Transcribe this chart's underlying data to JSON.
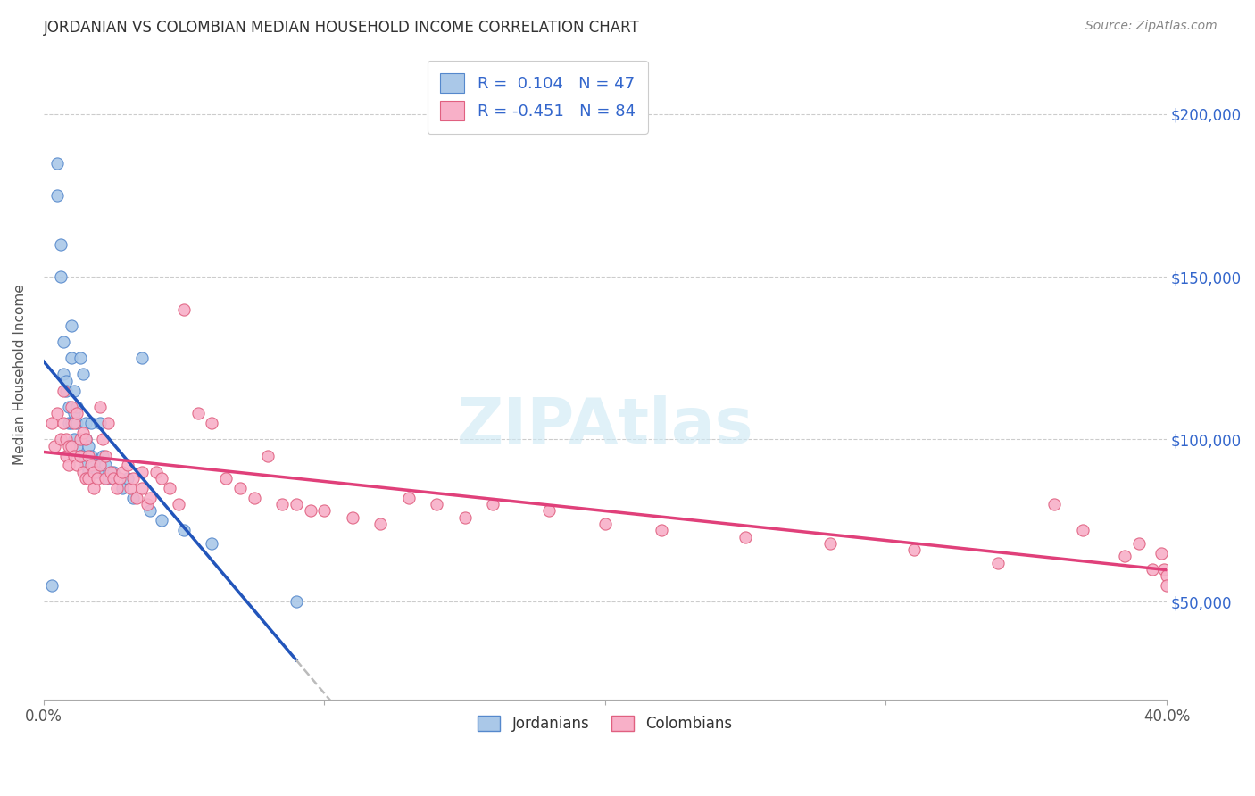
{
  "title": "JORDANIAN VS COLOMBIAN MEDIAN HOUSEHOLD INCOME CORRELATION CHART",
  "source": "Source: ZipAtlas.com",
  "ylabel": "Median Household Income",
  "y_ticks": [
    50000,
    100000,
    150000,
    200000
  ],
  "y_tick_labels": [
    "$50,000",
    "$100,000",
    "$150,000",
    "$200,000"
  ],
  "xlim": [
    0.0,
    0.4
  ],
  "ylim": [
    20000,
    220000
  ],
  "jordan_color": "#aac8e8",
  "jordan_edge": "#5588cc",
  "colombia_color": "#f8b0c8",
  "colombia_edge": "#e06080",
  "jordan_line_color": "#2255bb",
  "colombia_line_color": "#e0407a",
  "trend_dashed_color": "#bbbbbb",
  "jordanians_x": [
    0.003,
    0.005,
    0.005,
    0.006,
    0.006,
    0.007,
    0.007,
    0.008,
    0.008,
    0.009,
    0.009,
    0.01,
    0.01,
    0.01,
    0.011,
    0.011,
    0.011,
    0.012,
    0.012,
    0.012,
    0.013,
    0.013,
    0.014,
    0.014,
    0.015,
    0.015,
    0.015,
    0.016,
    0.016,
    0.017,
    0.017,
    0.018,
    0.019,
    0.02,
    0.021,
    0.022,
    0.023,
    0.025,
    0.028,
    0.03,
    0.032,
    0.035,
    0.038,
    0.042,
    0.05,
    0.06,
    0.09
  ],
  "jordanians_y": [
    55000,
    185000,
    175000,
    160000,
    150000,
    130000,
    120000,
    118000,
    115000,
    110000,
    105000,
    135000,
    125000,
    105000,
    115000,
    108000,
    100000,
    110000,
    105000,
    98000,
    125000,
    95000,
    120000,
    95000,
    105000,
    100000,
    92000,
    98000,
    90000,
    105000,
    95000,
    92000,
    90000,
    105000,
    95000,
    92000,
    88000,
    90000,
    85000,
    88000,
    82000,
    125000,
    78000,
    75000,
    72000,
    68000,
    50000
  ],
  "colombians_x": [
    0.003,
    0.004,
    0.005,
    0.006,
    0.007,
    0.007,
    0.008,
    0.008,
    0.009,
    0.009,
    0.01,
    0.01,
    0.011,
    0.011,
    0.012,
    0.012,
    0.013,
    0.013,
    0.014,
    0.014,
    0.015,
    0.015,
    0.016,
    0.016,
    0.017,
    0.018,
    0.018,
    0.019,
    0.02,
    0.02,
    0.021,
    0.022,
    0.022,
    0.023,
    0.024,
    0.025,
    0.026,
    0.027,
    0.028,
    0.03,
    0.031,
    0.032,
    0.033,
    0.035,
    0.035,
    0.037,
    0.038,
    0.04,
    0.042,
    0.045,
    0.048,
    0.05,
    0.055,
    0.06,
    0.065,
    0.07,
    0.075,
    0.08,
    0.085,
    0.09,
    0.095,
    0.1,
    0.11,
    0.12,
    0.13,
    0.14,
    0.15,
    0.16,
    0.18,
    0.2,
    0.22,
    0.25,
    0.28,
    0.31,
    0.34,
    0.36,
    0.37,
    0.385,
    0.39,
    0.395,
    0.398,
    0.399,
    0.4,
    0.4
  ],
  "colombians_y": [
    105000,
    98000,
    108000,
    100000,
    115000,
    105000,
    100000,
    95000,
    98000,
    92000,
    110000,
    98000,
    105000,
    95000,
    108000,
    92000,
    100000,
    95000,
    102000,
    90000,
    100000,
    88000,
    95000,
    88000,
    92000,
    90000,
    85000,
    88000,
    110000,
    92000,
    100000,
    95000,
    88000,
    105000,
    90000,
    88000,
    85000,
    88000,
    90000,
    92000,
    85000,
    88000,
    82000,
    90000,
    85000,
    80000,
    82000,
    90000,
    88000,
    85000,
    80000,
    140000,
    108000,
    105000,
    88000,
    85000,
    82000,
    95000,
    80000,
    80000,
    78000,
    78000,
    76000,
    74000,
    82000,
    80000,
    76000,
    80000,
    78000,
    74000,
    72000,
    70000,
    68000,
    66000,
    62000,
    80000,
    72000,
    64000,
    68000,
    60000,
    65000,
    60000,
    58000,
    55000
  ]
}
